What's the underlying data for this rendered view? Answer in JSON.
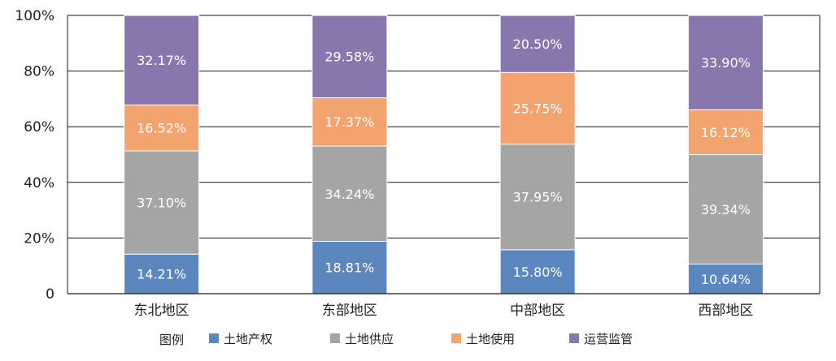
{
  "chart_data": {
    "type": "bar",
    "stacked": true,
    "title": "",
    "xlabel": "",
    "ylabel": "",
    "ylim": [
      0,
      100
    ],
    "yticks": [
      "0",
      "20%",
      "40%",
      "60%",
      "80%",
      "100%"
    ],
    "ytick_values": [
      0,
      20,
      40,
      60,
      80,
      100
    ],
    "grid": true,
    "legend_position": "bottom",
    "legend_title": "图例",
    "categories": [
      "东北地区",
      "东部地区",
      "中部地区",
      "西部地区"
    ],
    "series": [
      {
        "name": "土地产权",
        "color": "#5b87be",
        "values": [
          14.21,
          18.81,
          15.8,
          10.64
        ],
        "labels": [
          "14.21%",
          "18.81%",
          "15.80%",
          "10.64%"
        ]
      },
      {
        "name": "土地供应",
        "color": "#a5a5a5",
        "values": [
          37.1,
          34.24,
          37.95,
          39.34
        ],
        "labels": [
          "37.10%",
          "34.24%",
          "37.95%",
          "39.34%"
        ]
      },
      {
        "name": "土地使用",
        "color": "#f3a46e",
        "values": [
          16.52,
          17.37,
          25.75,
          16.12
        ],
        "labels": [
          "16.52%",
          "17.37%",
          "25.75%",
          "16.12%"
        ]
      },
      {
        "name": "运营监管",
        "color": "#8877ad",
        "values": [
          32.17,
          29.58,
          20.5,
          33.9
        ],
        "labels": [
          "32.17%",
          "29.58%",
          "20.50%",
          "33.90%"
        ]
      }
    ]
  }
}
